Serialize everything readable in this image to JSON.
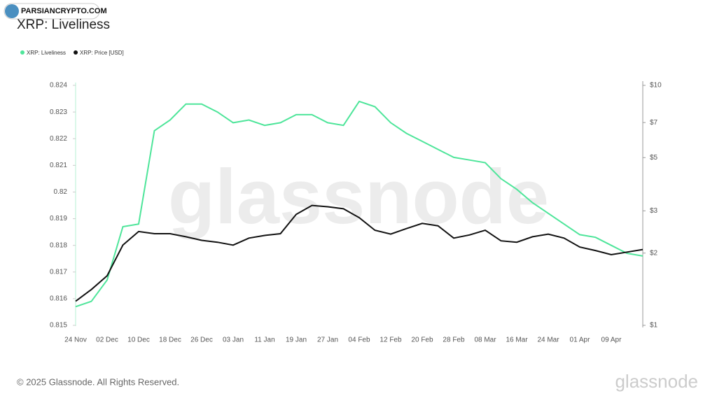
{
  "badge": "PARSIANCRYPTO.COM",
  "footer": {
    "copyright": "© 2025 Glassnode. All Rights Reserved.",
    "brand": "glassnode"
  },
  "watermark": "glassnode",
  "chart_data": {
    "type": "line",
    "title": "XRP: Liveliness",
    "categories": [
      "24 Nov",
      null,
      "02 Dec",
      null,
      "10 Dec",
      null,
      "18 Dec",
      null,
      "26 Dec",
      null,
      "03 Jan",
      null,
      "11 Jan",
      null,
      "19 Jan",
      null,
      "27 Jan",
      null,
      "04 Feb",
      null,
      "12 Feb",
      null,
      "20 Feb",
      null,
      "28 Feb",
      null,
      "08 Mar",
      null,
      "16 Mar",
      null,
      "24 Mar",
      null,
      "01 Apr",
      null,
      "09 Apr",
      null,
      null
    ],
    "series": [
      {
        "name": "XRP: Liveliness",
        "color": "#4ee59a",
        "values": [
          0.8157,
          0.8159,
          0.8167,
          0.8187,
          0.8188,
          0.8223,
          0.8227,
          0.8233,
          0.8233,
          0.823,
          0.8226,
          0.8227,
          0.8225,
          0.8226,
          0.8229,
          0.8229,
          0.8226,
          0.8225,
          0.8234,
          0.8232,
          0.8226,
          0.8222,
          0.8219,
          0.8216,
          0.8213,
          0.8212,
          0.8211,
          0.8205,
          0.8201,
          0.8196,
          0.8192,
          0.8188,
          0.8184,
          0.8183,
          0.818,
          0.8177,
          0.8176
        ]
      },
      {
        "name": "XRP: Price [USD]",
        "color": "#111111",
        "axis": "y2",
        "values": [
          1.26,
          1.41,
          1.61,
          2.16,
          2.46,
          2.41,
          2.41,
          2.34,
          2.26,
          2.22,
          2.16,
          2.31,
          2.37,
          2.41,
          2.9,
          3.16,
          3.12,
          3.06,
          2.81,
          2.49,
          2.4,
          2.53,
          2.66,
          2.6,
          2.31,
          2.38,
          2.49,
          2.25,
          2.22,
          2.34,
          2.4,
          2.31,
          2.12,
          2.05,
          1.97,
          2.02,
          2.07
        ]
      }
    ],
    "ylim": [
      0.815,
      0.824
    ],
    "yticks": [
      0.815,
      0.816,
      0.817,
      0.818,
      0.819,
      0.82,
      0.821,
      0.822,
      0.823,
      0.824
    ],
    "y2lim": [
      1,
      10
    ],
    "y2log": true,
    "y2ticks": [
      {
        "value": 1,
        "label": "$1"
      },
      {
        "value": 2,
        "label": "$2"
      },
      {
        "value": 3,
        "label": "$3"
      },
      {
        "value": 5,
        "label": "$5"
      },
      {
        "value": 7,
        "label": "$7"
      },
      {
        "value": 10,
        "label": "$10"
      }
    ],
    "grid": false,
    "legend": "top-left"
  }
}
